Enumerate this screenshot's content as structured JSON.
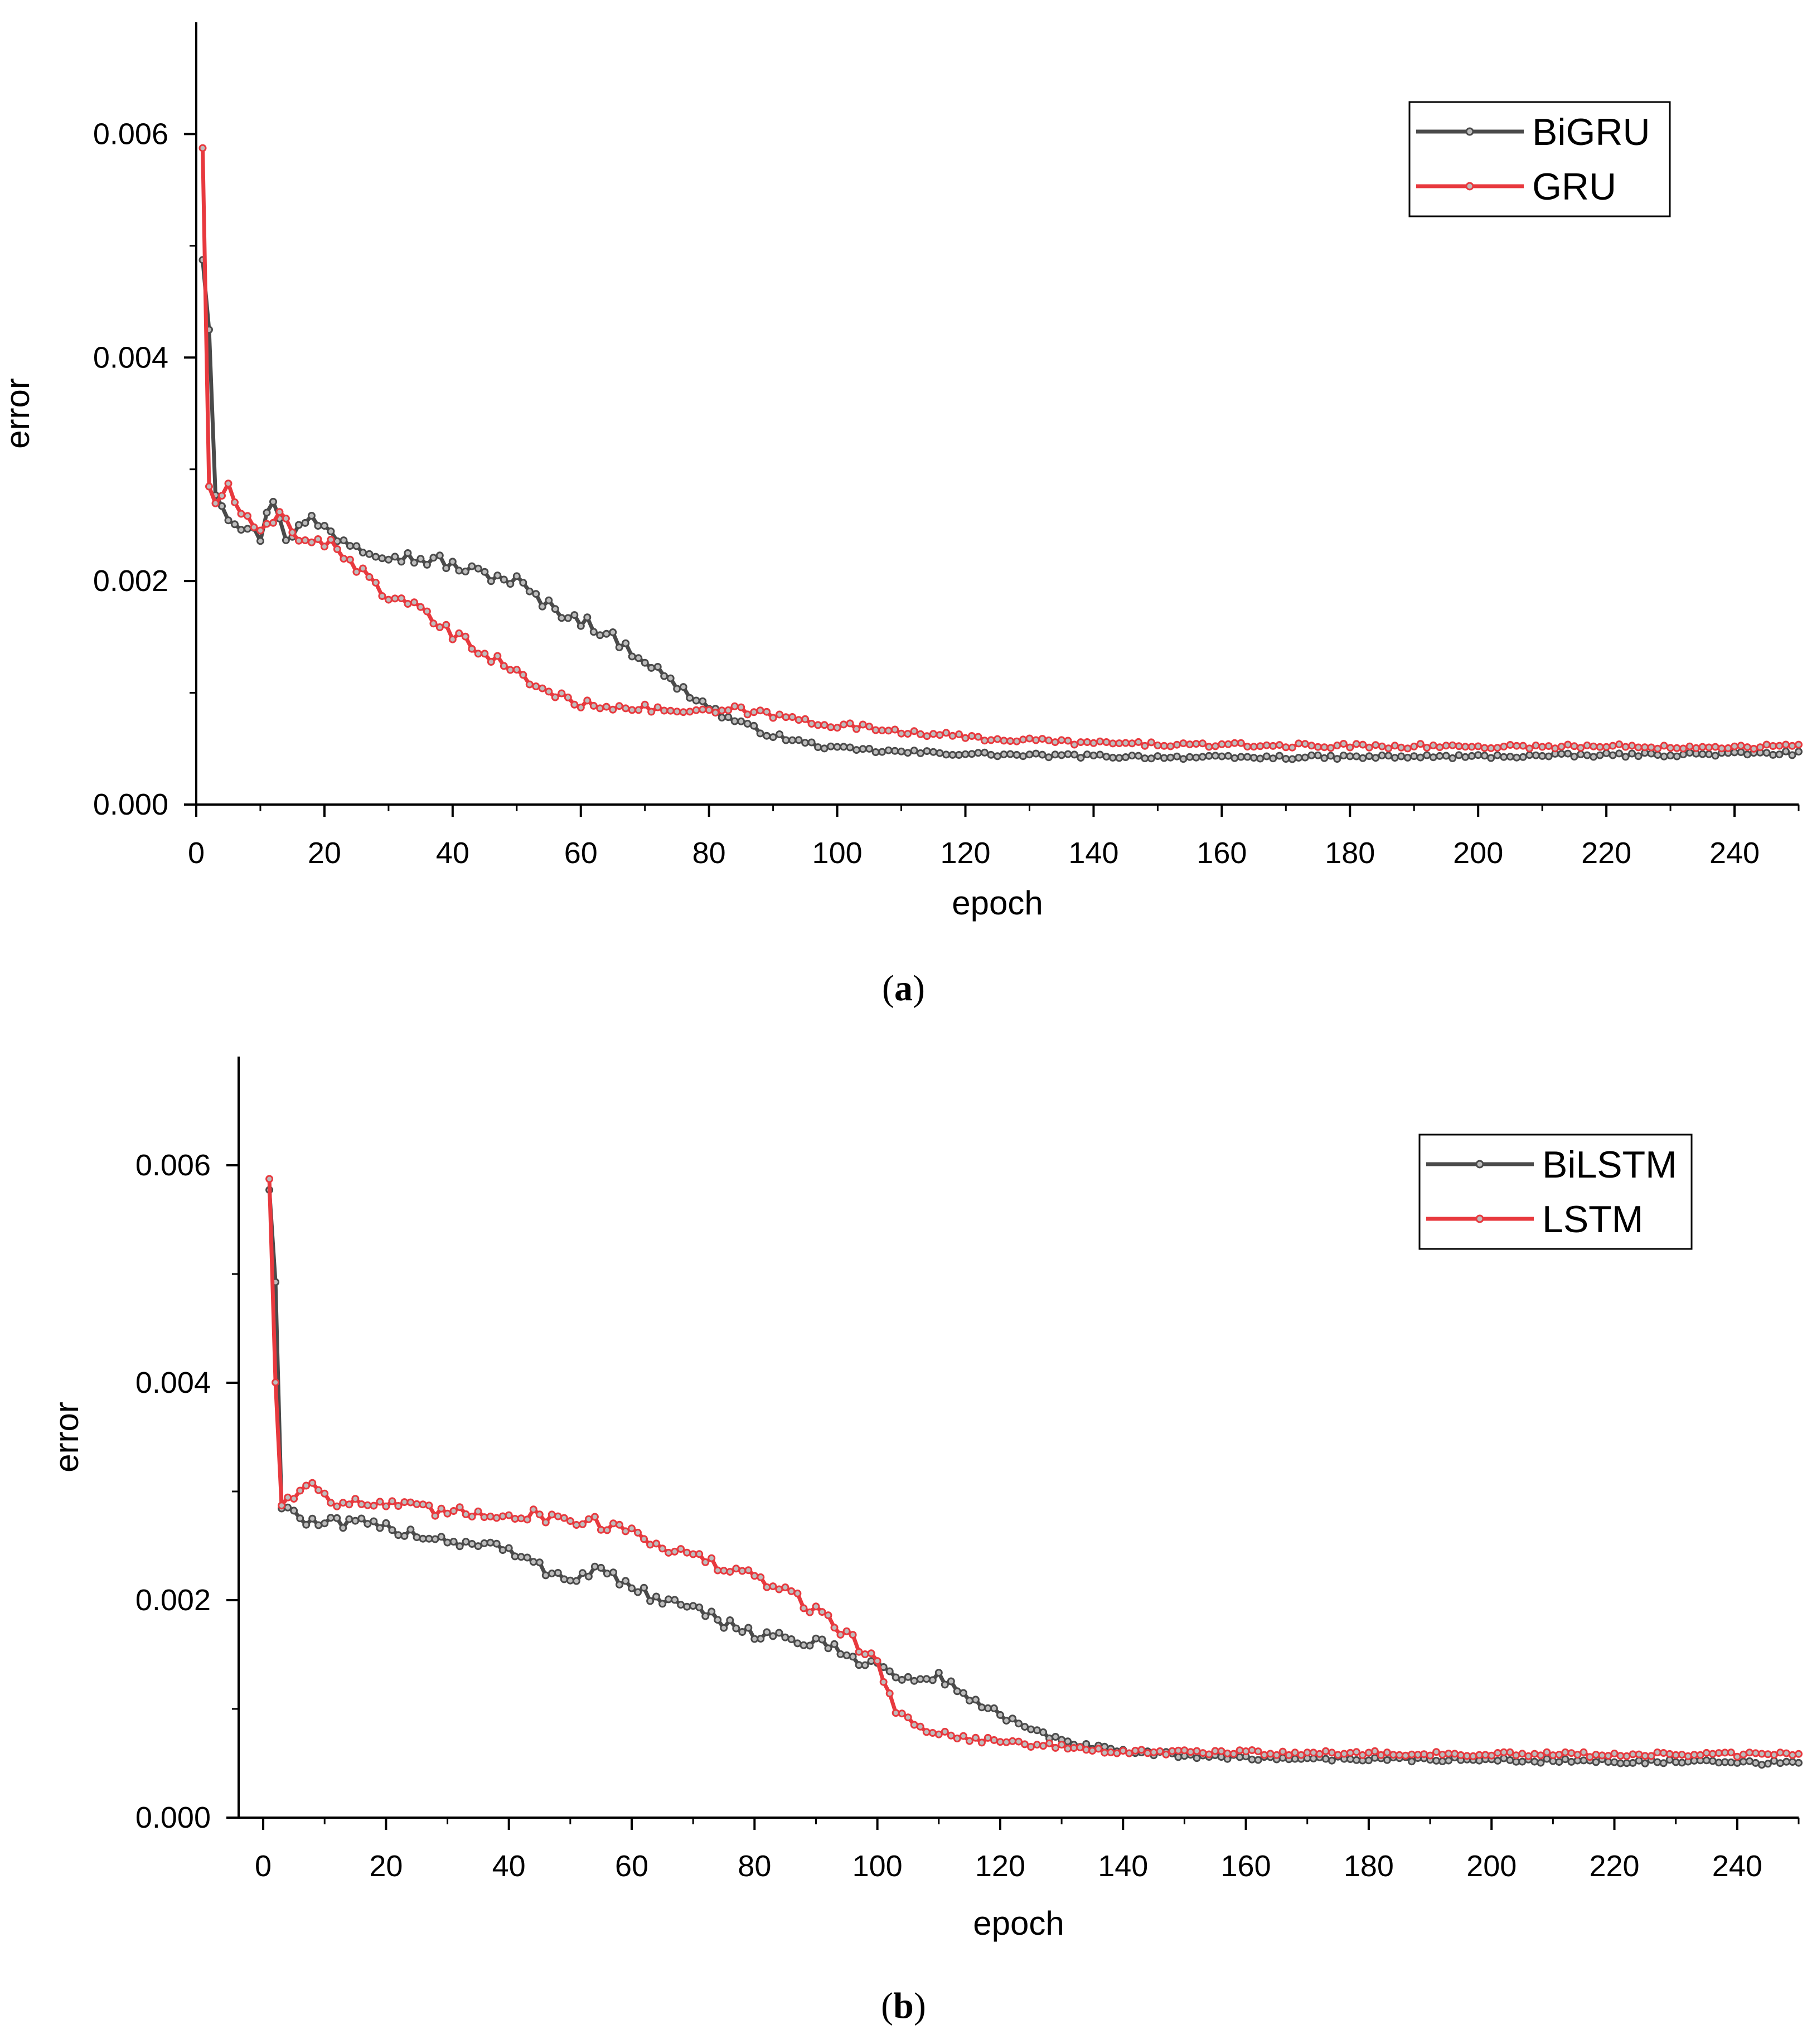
{
  "figure": {
    "panels": [
      {
        "caption_letter": "a"
      },
      {
        "caption_letter": "b"
      }
    ]
  },
  "chart_data": [
    {
      "type": "line",
      "panel": "a",
      "xlabel": "epoch",
      "ylabel": "error",
      "xlim": [
        0,
        250
      ],
      "ylim": [
        0,
        0.007
      ],
      "xticks": [
        "0",
        "20",
        "40",
        "60",
        "80",
        "100",
        "120",
        "140",
        "160",
        "180",
        "200",
        "220",
        "240"
      ],
      "yticks": [
        "0.000",
        "0.002",
        "0.004",
        "0.006"
      ],
      "legend_position": "top-right",
      "series": [
        {
          "name": "BiGRU",
          "color": "#4a4a4a",
          "keypoints": [
            [
              1,
              0.0049
            ],
            [
              2,
              0.0043
            ],
            [
              3,
              0.0028
            ],
            [
              5,
              0.0026
            ],
            [
              7,
              0.0025
            ],
            [
              10,
              0.0024
            ],
            [
              12,
              0.00275
            ],
            [
              14,
              0.0024
            ],
            [
              18,
              0.00255
            ],
            [
              22,
              0.0024
            ],
            [
              26,
              0.0023
            ],
            [
              30,
              0.00225
            ],
            [
              34,
              0.0022
            ],
            [
              38,
              0.00218
            ],
            [
              42,
              0.0021
            ],
            [
              46,
              0.00205
            ],
            [
              50,
              0.002
            ],
            [
              54,
              0.0018
            ],
            [
              58,
              0.0017
            ],
            [
              62,
              0.0016
            ],
            [
              66,
              0.00145
            ],
            [
              70,
              0.0013
            ],
            [
              74,
              0.0011
            ],
            [
              78,
              0.00095
            ],
            [
              82,
              0.0008
            ],
            [
              86,
              0.0007
            ],
            [
              90,
              0.00062
            ],
            [
              95,
              0.00055
            ],
            [
              100,
              0.0005
            ],
            [
              110,
              0.00047
            ],
            [
              130,
              0.00044
            ],
            [
              160,
              0.00042
            ],
            [
              200,
              0.00043
            ],
            [
              250,
              0.00046
            ]
          ]
        },
        {
          "name": "GRU",
          "color": "#e8393e",
          "keypoints": [
            [
              1,
              0.0059
            ],
            [
              2,
              0.0028
            ],
            [
              3,
              0.0027
            ],
            [
              5,
              0.00285
            ],
            [
              7,
              0.0026
            ],
            [
              10,
              0.0024
            ],
            [
              13,
              0.0026
            ],
            [
              16,
              0.0024
            ],
            [
              20,
              0.00235
            ],
            [
              24,
              0.0022
            ],
            [
              28,
              0.00195
            ],
            [
              32,
              0.0018
            ],
            [
              36,
              0.0017
            ],
            [
              40,
              0.0015
            ],
            [
              44,
              0.0014
            ],
            [
              48,
              0.00125
            ],
            [
              52,
              0.0011
            ],
            [
              56,
              0.00098
            ],
            [
              60,
              0.0009
            ],
            [
              66,
              0.00088
            ],
            [
              72,
              0.00085
            ],
            [
              80,
              0.00082
            ],
            [
              84,
              0.00085
            ],
            [
              90,
              0.0008
            ],
            [
              96,
              0.00074
            ],
            [
              102,
              0.0007
            ],
            [
              110,
              0.00066
            ],
            [
              120,
              0.0006
            ],
            [
              140,
              0.00055
            ],
            [
              160,
              0.00053
            ],
            [
              200,
              0.00052
            ],
            [
              250,
              0.00052
            ]
          ]
        }
      ]
    },
    {
      "type": "line",
      "panel": "b",
      "xlabel": "epoch",
      "ylabel": "error",
      "xlim": [
        -4,
        250
      ],
      "ylim": [
        0,
        0.007
      ],
      "xticks": [
        "0",
        "20",
        "40",
        "60",
        "80",
        "100",
        "120",
        "140",
        "160",
        "180",
        "200",
        "220",
        "240"
      ],
      "yticks": [
        "0.000",
        "0.002",
        "0.004",
        "0.006"
      ],
      "legend_position": "top-right",
      "series": [
        {
          "name": "BiLSTM",
          "color": "#4a4a4a",
          "keypoints": [
            [
              1,
              0.0058
            ],
            [
              2,
              0.0049
            ],
            [
              3,
              0.0029
            ],
            [
              5,
              0.0028
            ],
            [
              8,
              0.0027
            ],
            [
              15,
              0.0027
            ],
            [
              22,
              0.00265
            ],
            [
              30,
              0.00255
            ],
            [
              38,
              0.0025
            ],
            [
              45,
              0.0023
            ],
            [
              50,
              0.0022
            ],
            [
              55,
              0.0023
            ],
            [
              60,
              0.0021
            ],
            [
              65,
              0.002
            ],
            [
              70,
              0.0019
            ],
            [
              75,
              0.0018
            ],
            [
              80,
              0.0017
            ],
            [
              85,
              0.00165
            ],
            [
              90,
              0.0016
            ],
            [
              95,
              0.0015
            ],
            [
              100,
              0.0014
            ],
            [
              105,
              0.00125
            ],
            [
              110,
              0.0013
            ],
            [
              115,
              0.0011
            ],
            [
              120,
              0.00095
            ],
            [
              125,
              0.0008
            ],
            [
              130,
              0.0007
            ],
            [
              140,
              0.0006
            ],
            [
              160,
              0.00055
            ],
            [
              200,
              0.00053
            ],
            [
              250,
              0.0005
            ]
          ]
        },
        {
          "name": "LSTM",
          "color": "#e8393e",
          "keypoints": [
            [
              1,
              0.0059
            ],
            [
              2,
              0.004
            ],
            [
              3,
              0.0029
            ],
            [
              5,
              0.00295
            ],
            [
              8,
              0.0031
            ],
            [
              12,
              0.0029
            ],
            [
              20,
              0.00288
            ],
            [
              30,
              0.0028
            ],
            [
              40,
              0.0028
            ],
            [
              50,
              0.00275
            ],
            [
              55,
              0.0027
            ],
            [
              60,
              0.00265
            ],
            [
              65,
              0.0025
            ],
            [
              70,
              0.0024
            ],
            [
              75,
              0.0023
            ],
            [
              80,
              0.0022
            ],
            [
              85,
              0.0021
            ],
            [
              90,
              0.0019
            ],
            [
              95,
              0.0017
            ],
            [
              100,
              0.0014
            ],
            [
              103,
              0.001
            ],
            [
              106,
              0.00085
            ],
            [
              112,
              0.00075
            ],
            [
              120,
              0.0007
            ],
            [
              130,
              0.00065
            ],
            [
              140,
              0.0006
            ],
            [
              160,
              0.0006
            ],
            [
              200,
              0.00058
            ],
            [
              250,
              0.00058
            ]
          ]
        }
      ]
    }
  ]
}
